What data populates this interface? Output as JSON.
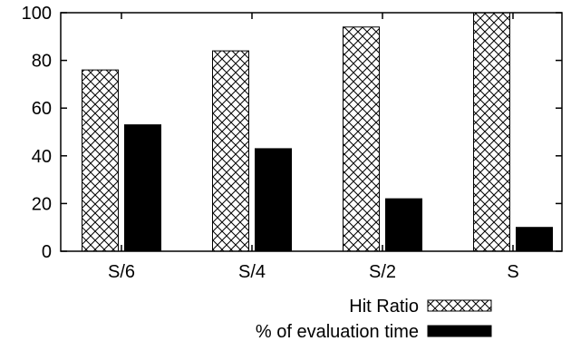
{
  "chart_data": {
    "type": "bar",
    "categories": [
      "S/6",
      "S/4",
      "S/2",
      "S"
    ],
    "series": [
      {
        "name": "Hit Ratio",
        "values": [
          76,
          84,
          94,
          100
        ],
        "pattern": "crosshatch",
        "color": "#000000"
      },
      {
        "name": "% of evaluation time",
        "values": [
          53,
          43,
          22,
          10
        ],
        "pattern": "solid",
        "color": "#000000"
      }
    ],
    "y_ticks": [
      "0",
      "20",
      "40",
      "60",
      "80",
      "100"
    ],
    "ylim": [
      0,
      100
    ],
    "grid": false,
    "legend_position": "bottom-right",
    "title": "",
    "xlabel": "",
    "ylabel": ""
  }
}
